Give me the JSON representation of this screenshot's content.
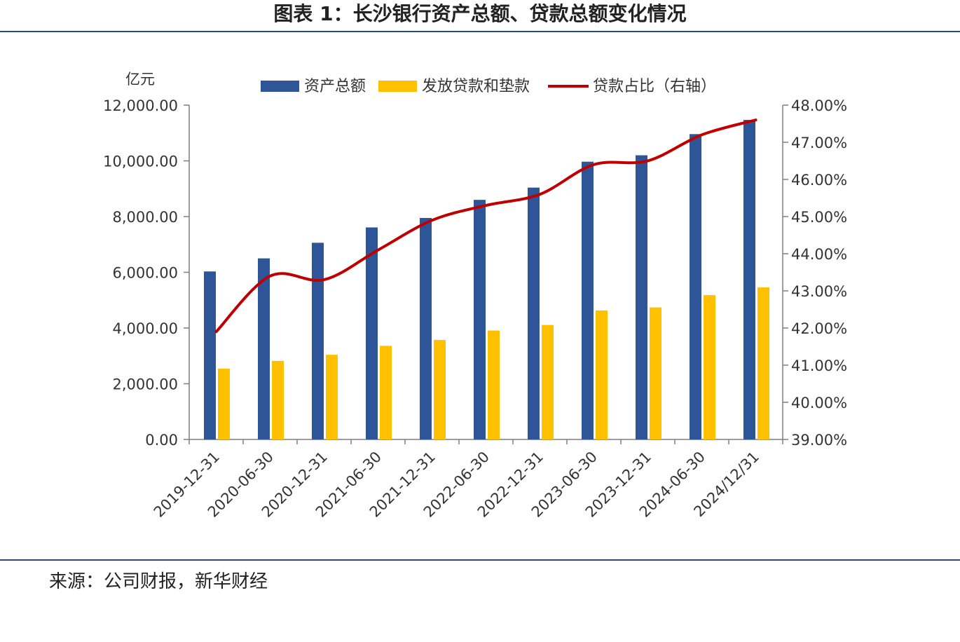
{
  "page": {
    "title": "图表 1：长沙银行资产总额、贷款总额变化情况",
    "source": "来源：公司财报，新华财经"
  },
  "colors": {
    "assets": "#2e5597",
    "loans": "#ffc000",
    "ratio": "#c00000",
    "axis": "#7f7f7f",
    "rule": "#2c4a6e"
  },
  "chart_data": {
    "type": "bar",
    "unit_label": "亿元",
    "categories": [
      "2019-12-31",
      "2020-06-30",
      "2020-12-31",
      "2021-06-30",
      "2021-12-31",
      "2022-06-30",
      "2022-12-31",
      "2023-06-30",
      "2023-12-31",
      "2024-06-30",
      "2024/12/31"
    ],
    "series": [
      {
        "name": "资产总额",
        "type": "bar",
        "axis": "left",
        "values": [
          6030,
          6500,
          7060,
          7610,
          7950,
          8600,
          9040,
          9970,
          10200,
          10960,
          11470
        ]
      },
      {
        "name": "发放贷款和垫款",
        "type": "bar",
        "axis": "left",
        "values": [
          2540,
          2820,
          3040,
          3360,
          3570,
          3910,
          4110,
          4630,
          4740,
          5180,
          5460
        ]
      },
      {
        "name": "贷款占比（右轴）",
        "type": "line",
        "axis": "right",
        "values": [
          41.9,
          43.4,
          43.3,
          44.1,
          44.9,
          45.3,
          45.6,
          46.4,
          46.5,
          47.2,
          47.6
        ]
      }
    ],
    "ylim_left": [
      0,
      12000
    ],
    "ylim_right": [
      39,
      48
    ],
    "yticks_left": [
      "0.00",
      "2,000.00",
      "4,000.00",
      "6,000.00",
      "8,000.00",
      "10,000.00",
      "12,000.00"
    ],
    "yticks_right": [
      "39.00%",
      "40.00%",
      "41.00%",
      "42.00%",
      "43.00%",
      "44.00%",
      "45.00%",
      "46.00%",
      "47.00%",
      "48.00%"
    ],
    "legend_position": "top",
    "grid": false
  }
}
